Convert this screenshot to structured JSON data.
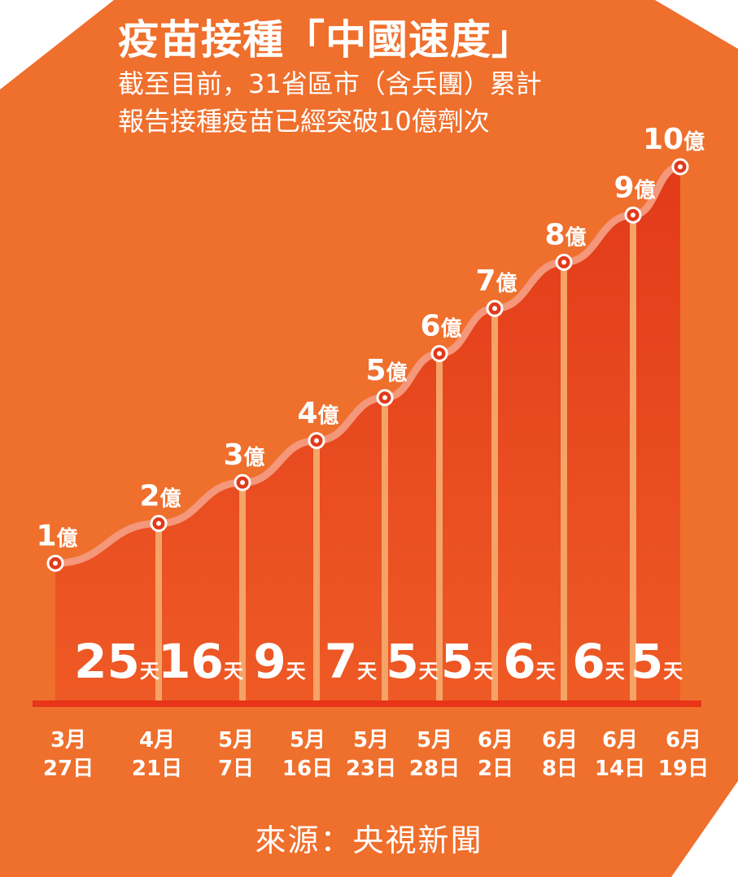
{
  "colors": {
    "background": "#ef6f2c",
    "background_dark": "#e8632a",
    "area": "#e23a1a",
    "area_light": "#ee5a25",
    "line": "#f4977a",
    "divider": "#f5a367",
    "axis": "#e83419",
    "text": "#ffffff"
  },
  "header": {
    "title": "疫苗接種「中國速度」",
    "subtitle_line1": "截至目前，31省區市（含兵團）累計",
    "subtitle_line2": "報告接種疫苗已經突破10億劑次"
  },
  "source": "來源：央視新聞",
  "chart_data": {
    "type": "area",
    "x": [
      "3月27日",
      "4月21日",
      "5月7日",
      "5月16日",
      "5月23日",
      "5月28日",
      "6月2日",
      "6月8日",
      "6月14日",
      "6月19日"
    ],
    "x_tick_labels": [
      {
        "month": "3月",
        "day": "27日"
      },
      {
        "month": "4月",
        "day": "21日"
      },
      {
        "month": "5月",
        "day": "7日"
      },
      {
        "month": "5月",
        "day": "16日"
      },
      {
        "month": "5月",
        "day": "23日"
      },
      {
        "month": "5月",
        "day": "28日"
      },
      {
        "month": "6月",
        "day": "2日"
      },
      {
        "month": "6月",
        "day": "8日"
      },
      {
        "month": "6月",
        "day": "14日"
      },
      {
        "month": "6月",
        "day": "19日"
      }
    ],
    "values": [
      1,
      2,
      3,
      4,
      5,
      6,
      7,
      8,
      9,
      10
    ],
    "point_labels": [
      {
        "num": "1",
        "unit": "億"
      },
      {
        "num": "2",
        "unit": "億"
      },
      {
        "num": "3",
        "unit": "億"
      },
      {
        "num": "4",
        "unit": "億"
      },
      {
        "num": "5",
        "unit": "億"
      },
      {
        "num": "6",
        "unit": "億"
      },
      {
        "num": "7",
        "unit": "億"
      },
      {
        "num": "8",
        "unit": "億"
      },
      {
        "num": "9",
        "unit": "億"
      },
      {
        "num": "10",
        "unit": "億"
      }
    ],
    "intervals": [
      {
        "num": "25",
        "unit": "天"
      },
      {
        "num": "16",
        "unit": "天"
      },
      {
        "num": "9",
        "unit": "天"
      },
      {
        "num": "7",
        "unit": "天"
      },
      {
        "num": "5",
        "unit": "天"
      },
      {
        "num": "5",
        "unit": "天"
      },
      {
        "num": "6",
        "unit": "天"
      },
      {
        "num": "6",
        "unit": "天"
      },
      {
        "num": "5",
        "unit": "天"
      }
    ],
    "grid": false,
    "legend": "none"
  }
}
